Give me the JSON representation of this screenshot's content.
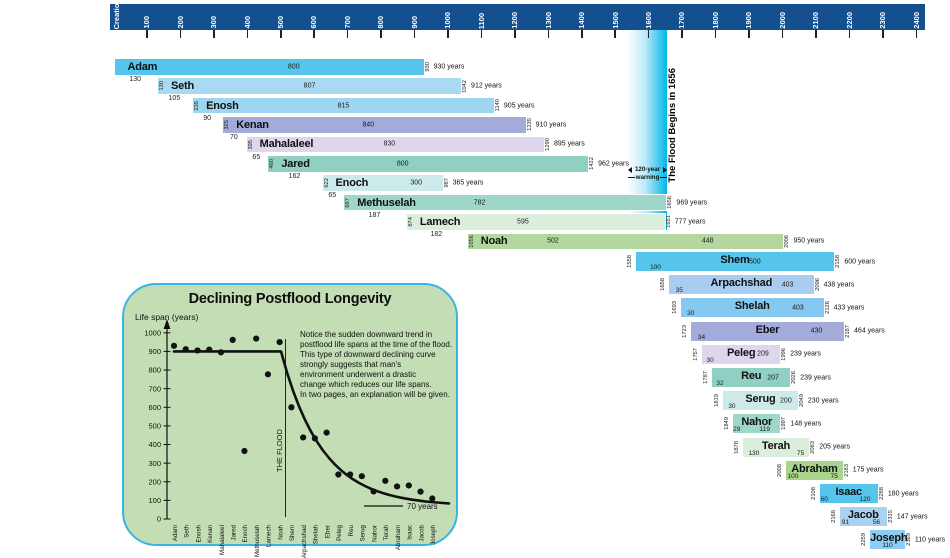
{
  "timeline": {
    "origin_label": "Creation",
    "ticks": [
      100,
      200,
      300,
      400,
      500,
      600,
      700,
      800,
      900,
      1000,
      1100,
      1200,
      1300,
      1400,
      1500,
      1600,
      1700,
      1800,
      1900,
      2000,
      2100,
      2200,
      2300,
      2400
    ]
  },
  "flood": {
    "band_start_year": 1536,
    "band_end_year": 1656,
    "title": "The Flood Begins in 1656",
    "warning_line1": "120-year",
    "warning_line2": "warning"
  },
  "colors": {
    "axis_bar": "#14508f",
    "flood_cyan": "#00b6ea",
    "inset_bg": "#c3ddb4",
    "inset_border": "#39b4e4"
  },
  "chart_data": [
    {
      "type": "bar",
      "subtype": "timeline-gantt",
      "xlim": [
        0,
        2400
      ],
      "rows": [
        {
          "name": "Adam",
          "birth": 0,
          "death": 930,
          "years": "930 years",
          "start": null,
          "end": "930",
          "color": "#56c5ec",
          "grp": "ante",
          "nums": [
            {
              "t": "800",
              "f": 0.58,
              "p": "mid"
            }
          ],
          "below": {
            "t": "130",
            "y": 65
          }
        },
        {
          "name": "Seth",
          "birth": 130,
          "death": 1042,
          "years": "912 years",
          "start": "130",
          "end": "1042",
          "color": "#a9d9f3",
          "grp": "ante",
          "nums": [
            {
              "t": "807",
              "f": 0.5,
              "p": "mid"
            }
          ],
          "below": {
            "t": "105",
            "y": 182
          }
        },
        {
          "name": "Enosh",
          "birth": 235,
          "death": 1140,
          "years": "905 years",
          "start": "235",
          "end": "1140",
          "color": "#9ed5f1",
          "grp": "ante",
          "nums": [
            {
              "t": "815",
              "f": 0.5,
              "p": "mid"
            }
          ],
          "below": {
            "t": "90",
            "y": 280
          }
        },
        {
          "name": "Kenan",
          "birth": 325,
          "death": 1235,
          "years": "910 years",
          "start": "325",
          "end": "1235",
          "color": "#a3abdb",
          "grp": "ante",
          "nums": [
            {
              "t": "840",
              "f": 0.48,
              "p": "mid"
            }
          ],
          "below": {
            "t": "70",
            "y": 360
          }
        },
        {
          "name": "Mahalaleel",
          "birth": 395,
          "death": 1290,
          "years": "895 years",
          "start": "395",
          "end": "1290",
          "color": "#ded6ec",
          "grp": "ante",
          "nums": [
            {
              "t": "830",
              "f": 0.48,
              "p": "mid"
            }
          ],
          "below": {
            "t": "65",
            "y": 427
          }
        },
        {
          "name": "Jared",
          "birth": 460,
          "death": 1422,
          "years": "962 years",
          "start": "460",
          "end": "1422",
          "color": "#8fd0c3",
          "grp": "ante",
          "nums": [
            {
              "t": "800",
              "f": 0.42,
              "p": "mid"
            }
          ],
          "below": {
            "t": "162",
            "y": 541
          }
        },
        {
          "name": "Enoch",
          "birth": 622,
          "death": 987,
          "years": "365 years",
          "start": "622",
          "end": "987",
          "color": "#cdeaea",
          "grp": "ante",
          "nums": [
            {
              "t": "300",
              "f": 0.78,
              "p": "mid"
            }
          ],
          "below": {
            "t": "65",
            "y": 654
          }
        },
        {
          "name": "Methuselah",
          "birth": 687,
          "death": 1656,
          "years": "969 years",
          "start": "687",
          "end": "1656",
          "color": "#9fd6ca",
          "grp": "ante",
          "nums": [
            {
              "t": "782",
              "f": 0.42,
              "p": "mid"
            }
          ],
          "below": {
            "t": "187",
            "y": 780
          }
        },
        {
          "name": "Lamech",
          "birth": 874,
          "death": 1651,
          "years": "777 years",
          "start": "874",
          "end": "1651",
          "color": "#dbeedc",
          "grp": "ante",
          "nums": [
            {
              "t": "595",
              "f": 0.45,
              "p": "mid"
            }
          ],
          "below": {
            "t": "182",
            "y": 965
          }
        },
        {
          "name": "Noah",
          "birth": 1056,
          "death": 2006,
          "years": "950 years",
          "start": "1056",
          "end": "2006",
          "color": "#b2d89f",
          "grp": "ante",
          "nums": [
            {
              "t": "502",
              "f": 0.27,
              "p": "mid"
            },
            {
              "t": "448",
              "f": 0.76,
              "p": "mid"
            }
          ],
          "below": null
        },
        {
          "name": "Shem",
          "birth": 1558,
          "death": 2158,
          "years": "600 years",
          "start": "1558",
          "end": "2158",
          "color": "#56c5ec",
          "grp": "post",
          "nums": [
            {
              "t": "100",
              "f": 0.1,
              "p": "bot"
            },
            {
              "t": "500",
              "f": 0.6,
              "p": "mid"
            }
          ],
          "below": null
        },
        {
          "name": "Arpachshad",
          "birth": 1658,
          "death": 2096,
          "years": "438 years",
          "start": "1658",
          "end": "2096",
          "color": "#a9cdf0",
          "grp": "post",
          "nums": [
            {
              "t": "35",
              "f": 0.07,
              "p": "bot"
            },
            {
              "t": "403",
              "f": 0.82,
              "p": "mid"
            }
          ],
          "below": null
        },
        {
          "name": "Shelah",
          "birth": 1693,
          "death": 2126,
          "years": "433 years",
          "start": "1693",
          "end": "2126",
          "color": "#86c9f0",
          "grp": "post",
          "nums": [
            {
              "t": "30",
              "f": 0.07,
              "p": "bot"
            },
            {
              "t": "403",
              "f": 0.82,
              "p": "mid"
            }
          ],
          "below": null
        },
        {
          "name": "Eber",
          "birth": 1723,
          "death": 2187,
          "years": "464 years",
          "start": "1723",
          "end": "2187",
          "color": "#a3abdb",
          "grp": "post",
          "nums": [
            {
              "t": "34",
              "f": 0.07,
              "p": "bot"
            },
            {
              "t": "430",
              "f": 0.82,
              "p": "mid"
            }
          ],
          "below": null
        },
        {
          "name": "Peleg",
          "birth": 1757,
          "death": 1996,
          "years": "239 years",
          "start": "1757",
          "end": "1996",
          "color": "#ded6ec",
          "grp": "post",
          "nums": [
            {
              "t": "30",
              "f": 0.1,
              "p": "bot"
            },
            {
              "t": "209",
              "f": 0.78,
              "p": "mid"
            }
          ],
          "below": null
        },
        {
          "name": "Reu",
          "birth": 1787,
          "death": 2026,
          "years": "239 years",
          "start": "1787",
          "end": "2026",
          "color": "#8fd0c3",
          "grp": "post",
          "nums": [
            {
              "t": "32",
              "f": 0.1,
              "p": "bot"
            },
            {
              "t": "207",
              "f": 0.78,
              "p": "mid"
            }
          ],
          "below": null
        },
        {
          "name": "Serug",
          "birth": 1819,
          "death": 2049,
          "years": "230 years",
          "start": "1819",
          "end": "2049",
          "color": "#cdeaea",
          "grp": "post",
          "nums": [
            {
              "t": "30",
              "f": 0.12,
              "p": "bot"
            },
            {
              "t": "200",
              "f": 0.84,
              "p": "mid"
            }
          ],
          "below": null
        },
        {
          "name": "Nahor",
          "birth": 1849,
          "death": 1997,
          "years": "148 years",
          "start": "1849",
          "end": "1997",
          "color": "#9fd6ca",
          "grp": "post",
          "nums": [
            {
              "t": "29",
              "f": 0.08,
              "p": "bot"
            },
            {
              "t": "119",
              "f": 0.67,
              "p": "bot"
            }
          ],
          "below": null
        },
        {
          "name": "Terah",
          "birth": 1878,
          "death": 2083,
          "years": "205 years",
          "start": "1878",
          "end": "2083",
          "color": "#dbeedc",
          "grp": "post",
          "nums": [
            {
              "t": "130",
              "f": 0.17,
              "p": "bot"
            },
            {
              "t": "75",
              "f": 0.87,
              "p": "bot"
            }
          ],
          "below": null
        },
        {
          "name": "Abraham",
          "birth": 2008,
          "death": 2183,
          "years": "175 years",
          "start": "2008",
          "end": "2183",
          "color": "#a9d48d",
          "grp": "post",
          "nums": [
            {
              "t": "100",
              "f": 0.12,
              "p": "bot"
            },
            {
              "t": "75",
              "f": 0.85,
              "p": "bot"
            }
          ],
          "below": null
        },
        {
          "name": "Isaac",
          "birth": 2108,
          "death": 2288,
          "years": "180 years",
          "start": "2108",
          "end": "2288",
          "color": "#56c5ec",
          "grp": "post",
          "nums": [
            {
              "t": "60",
              "f": 0.08,
              "p": "bot"
            },
            {
              "t": "120",
              "f": 0.78,
              "p": "bot"
            }
          ],
          "below": null
        },
        {
          "name": "Jacob",
          "birth": 2168,
          "death": 2315,
          "years": "147 years",
          "start": "2168",
          "end": "2315",
          "color": "#a8d2f0",
          "grp": "post",
          "nums": [
            {
              "t": "91",
              "f": 0.12,
              "p": "bot"
            },
            {
              "t": "56",
              "f": 0.78,
              "p": "bot"
            }
          ],
          "below": null
        },
        {
          "name": "Joseph",
          "birth": 2259,
          "death": 2369,
          "years": "110 years",
          "start": "2259",
          "end": "2369",
          "color": "#8dcdf2",
          "grp": "post",
          "nums": [
            {
              "t": "110",
              "f": 0.5,
              "p": "bot"
            }
          ],
          "below": null
        }
      ]
    },
    {
      "type": "scatter",
      "title": "Declining Postflood Longevity",
      "ylabel": "Life span (years)",
      "ylim": [
        0,
        1000
      ],
      "ytick_step": 100,
      "categories": [
        "Adam",
        "Seth",
        "Enosh",
        "Kenan",
        "Mahalaleel",
        "Jared",
        "Enoch",
        "Methuselah",
        "Lamech",
        "Noah",
        "Shem",
        "Arpachshad",
        "Shelah",
        "Eber",
        "Peleg",
        "Reu",
        "Serug",
        "Nahor",
        "Terah",
        "Abraham",
        "Isaac",
        "Jacob",
        "Joseph"
      ],
      "values": [
        930,
        912,
        905,
        910,
        895,
        962,
        365,
        969,
        777,
        950,
        600,
        438,
        433,
        464,
        239,
        239,
        230,
        148,
        205,
        175,
        180,
        147,
        110
      ],
      "flood_divider_label": "THE FLOOD",
      "asymptote_label": "70 years",
      "annotation_lines": [
        "Notice the sudden downward trend in",
        "postflood life spans at the time of the flood.",
        "This type of downward declining curve",
        "strongly suggests that man's",
        "environment underwent a drastic",
        "change which reduces our life spans.",
        "In two pages, an explanation will be given."
      ]
    }
  ]
}
